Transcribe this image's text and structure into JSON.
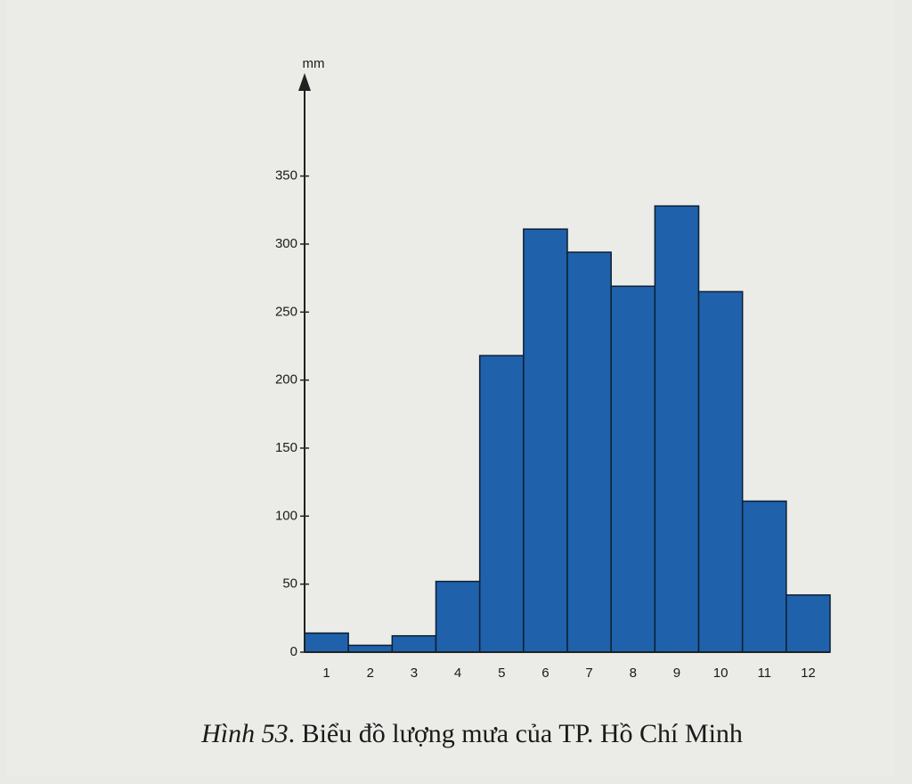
{
  "chart_data": {
    "type": "bar",
    "y_label": "mm",
    "figure_label": "Hình 53",
    "caption": ". Biểu đồ lượng mưa của TP. Hồ Chí Minh",
    "categories": [
      "1",
      "2",
      "3",
      "4",
      "5",
      "6",
      "7",
      "8",
      "9",
      "10",
      "11",
      "12"
    ],
    "values": [
      14,
      5,
      12,
      52,
      218,
      311,
      294,
      269,
      328,
      265,
      111,
      42
    ],
    "color": "#1f61aa",
    "ylim": [
      0,
      410
    ],
    "yticks": [
      0,
      50,
      100,
      150,
      200,
      250,
      300,
      350
    ],
    "grid": false
  }
}
